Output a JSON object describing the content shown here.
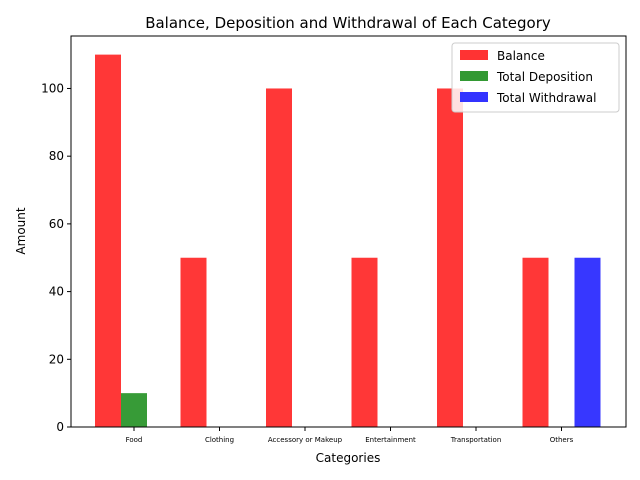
{
  "chart_data": {
    "type": "bar",
    "title": "Balance, Deposition and Withdrawal of Each Category",
    "xlabel": "Categories",
    "ylabel": "Amount",
    "categories": [
      "Food",
      "Clothing",
      "Accessory or Makeup",
      "Entertainment",
      "Transportation",
      "Others"
    ],
    "series": [
      {
        "name": "Balance",
        "color": "#ff3333",
        "values": [
          110,
          50,
          100,
          50,
          100,
          50
        ]
      },
      {
        "name": "Total Deposition",
        "color": "#339933",
        "values": [
          10,
          0,
          0,
          0,
          0,
          0
        ]
      },
      {
        "name": "Total Withdrawal",
        "color": "#3333ff",
        "values": [
          0,
          0,
          0,
          0,
          0,
          50
        ]
      }
    ],
    "ylim": [
      0,
      115.5
    ],
    "yticks": [
      0,
      20,
      40,
      60,
      80,
      100
    ],
    "grid": false,
    "legend": "top-right"
  }
}
